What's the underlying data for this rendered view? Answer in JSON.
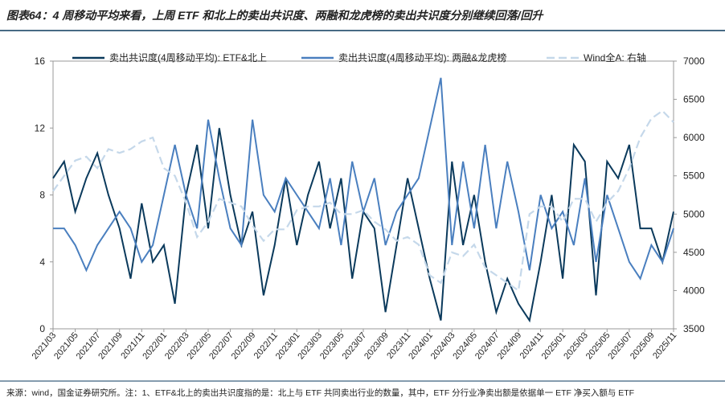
{
  "chart_data": {
    "type": "line",
    "title": "图表64：4 周移动平均来看，上周 ETF 和北上的卖出共识度、两融和龙虎榜的卖出共识度分别继续回落/回升",
    "footnote": "来源：wind，国金证券研究所。注：1、ETF&北上的卖出共识度指的是：北上与 ETF 共同卖出行业的数量，其中，ETF 分行业净卖出额是依据单一 ETF 净买入额与 ETF",
    "categories": [
      "2021/03",
      "2021/04",
      "2021/05",
      "2021/06",
      "2021/07",
      "2021/08",
      "2021/09",
      "2021/10",
      "2021/11",
      "2021/12",
      "2022/01",
      "2022/02",
      "2022/03",
      "2022/04",
      "2022/05",
      "2022/06",
      "2022/07",
      "2022/08",
      "2022/09",
      "2022/10",
      "2022/11",
      "2022/12",
      "2023/01",
      "2023/02",
      "2023/03",
      "2023/04",
      "2023/05",
      "2023/06",
      "2023/07",
      "2023/08",
      "2023/09",
      "2023/10",
      "2023/11",
      "2023/12",
      "2024/01",
      "2024/02",
      "2024/03",
      "2024/04",
      "2024/05",
      "2024/06",
      "2024/07",
      "2024/08",
      "2024/09",
      "2024/10",
      "2024/11",
      "2024/12",
      "2025/01",
      "2025/02",
      "2025/03",
      "2025/04",
      "2025/05",
      "2025/06",
      "2025/07",
      "2025/08",
      "2025/09",
      "2025/10",
      "2025/11"
    ],
    "series": [
      {
        "name": "卖出共识度(4周移动平均): ETF&北上",
        "color": "#0b3a5c",
        "dash": false,
        "values": [
          9,
          10,
          7,
          9,
          10.5,
          8,
          6,
          3,
          7.5,
          4,
          5,
          1.5,
          8,
          11,
          6,
          12,
          8,
          5,
          7,
          2,
          5,
          9,
          5,
          8,
          10,
          6,
          9,
          3,
          7,
          6,
          1,
          5,
          9,
          6,
          3,
          0.5,
          10,
          5,
          8,
          4,
          1,
          3,
          1.5,
          0.5,
          4,
          8,
          3,
          11,
          10,
          2,
          10,
          9,
          11,
          6,
          6,
          4,
          7
        ]
      },
      {
        "name": "卖出共识度(4周移动平均): 两融&龙虎榜",
        "color": "#4a7fbf",
        "dash": false,
        "values": [
          6,
          6,
          5,
          3.5,
          5,
          6,
          7,
          6,
          4,
          5,
          8,
          11,
          8,
          6,
          12.5,
          9,
          6,
          5,
          12.5,
          8,
          7,
          9,
          8,
          7,
          6,
          9,
          5,
          10,
          7,
          9,
          5,
          7,
          8,
          9,
          12,
          15,
          5,
          10,
          6,
          11,
          6,
          10,
          7,
          3.5,
          8,
          6,
          7,
          5,
          9,
          4,
          8,
          6,
          4,
          3,
          5,
          4,
          6
        ]
      },
      {
        "name": "Wind全A: 右轴",
        "color": "#c5d8ea",
        "dash": true,
        "axis": "y2",
        "values": [
          5300,
          5500,
          5700,
          5750,
          5600,
          5850,
          5800,
          5850,
          5950,
          6000,
          5600,
          5500,
          5150,
          4700,
          4900,
          5200,
          5150,
          5100,
          4850,
          4650,
          4800,
          4800,
          5050,
          5100,
          5100,
          5150,
          5000,
          5000,
          5050,
          4900,
          4800,
          4650,
          4700,
          4600,
          4200,
          4100,
          4500,
          4450,
          4600,
          4300,
          4200,
          4100,
          4000,
          5000,
          5100,
          5100,
          4900,
          5200,
          5200,
          4900,
          5150,
          5300,
          5600,
          6000,
          6250,
          6350,
          6200
        ]
      }
    ],
    "ylim": [
      0,
      16
    ],
    "yticks": [
      0,
      4,
      8,
      12,
      16
    ],
    "y2lim": [
      3500,
      7000
    ],
    "y2ticks": [
      3500,
      4000,
      4500,
      5000,
      5500,
      6000,
      6500,
      7000
    ]
  }
}
